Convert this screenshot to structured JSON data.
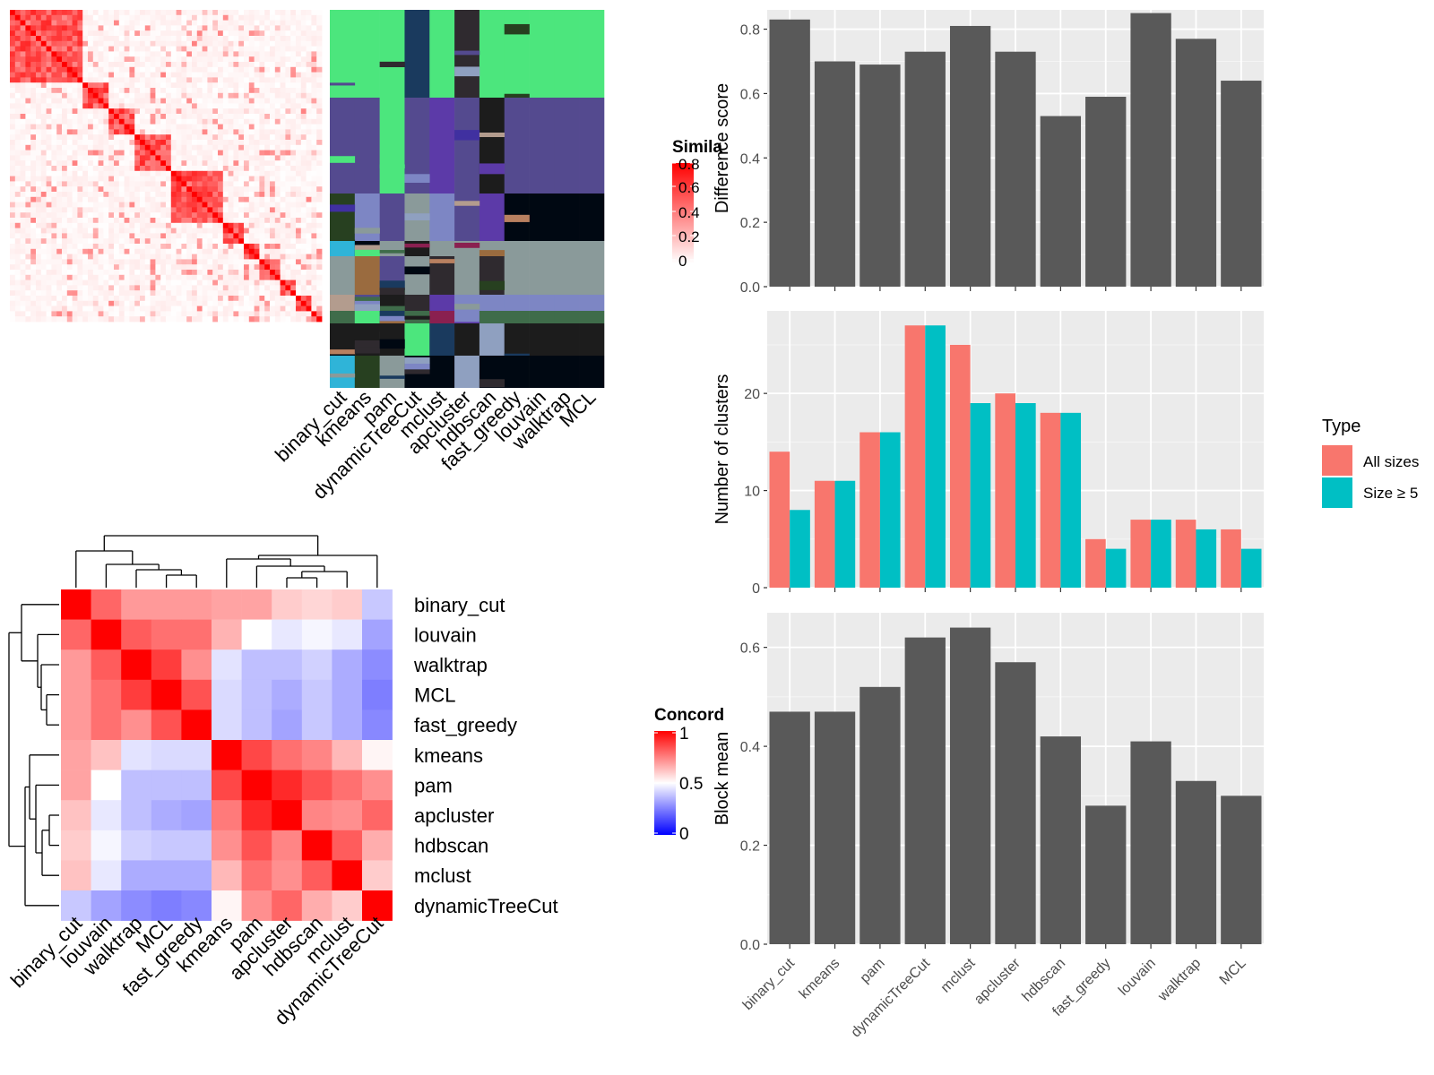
{
  "colors": {
    "panel_bg": "#ebebeb",
    "grid": "#ffffff",
    "bar": "#595959",
    "all_sizes": "#f8766d",
    "size5": "#00bfc4",
    "sim_high": "#ff0000",
    "sim_low": "#ffffff",
    "conc_high": "#ff0000",
    "conc_mid": "#ffffff",
    "conc_low": "#0000ff",
    "cluster_palette": [
      "#4ce67d",
      "#544a8f",
      "#000812",
      "#8a9a9a",
      "#7d86c4",
      "#3f6c4a",
      "#8a2050",
      "#2f2a2f",
      "#1c1c1c",
      "#b39c8e",
      "#2fb4d8",
      "#1a3a5e",
      "#5c3aa8",
      "#9a6b3f",
      "#8fa0c0",
      "#274020",
      "#4030a0",
      "#b88060"
    ]
  },
  "similarity_heatmap": {
    "legend_title": "Simila",
    "legend_ticks": [
      "0.8",
      "0.6",
      "0.4",
      "0.2",
      "0"
    ],
    "method_labels": [
      "binary_cut",
      "kmeans",
      "pam",
      "dynamicTreeCut",
      "mclust",
      "apcluster",
      "hdbscan",
      "fast_greedy",
      "louvain",
      "walktrap",
      "MCL"
    ]
  },
  "concordance_heatmap": {
    "legend_title": "Concord",
    "legend_ticks": [
      "1",
      "0.5",
      "0"
    ],
    "row_labels": [
      "binary_cut",
      "louvain",
      "walktrap",
      "MCL",
      "fast_greedy",
      "kmeans",
      "pam",
      "apcluster",
      "hdbscan",
      "mclust",
      "dynamicTreeCut"
    ],
    "col_labels": [
      "binary_cut",
      "louvain",
      "walktrap",
      "MCL",
      "fast_greedy",
      "kmeans",
      "pam",
      "apcluster",
      "hdbscan",
      "mclust",
      "dynamicTreeCut"
    ],
    "matrix": [
      [
        1.0,
        0.8,
        0.7,
        0.7,
        0.7,
        0.68,
        0.68,
        0.6,
        0.58,
        0.6,
        0.38
      ],
      [
        0.8,
        1.0,
        0.82,
        0.78,
        0.78,
        0.65,
        0.5,
        0.45,
        0.48,
        0.45,
        0.3
      ],
      [
        0.7,
        0.82,
        1.0,
        0.88,
        0.72,
        0.44,
        0.36,
        0.36,
        0.4,
        0.32,
        0.25
      ],
      [
        0.7,
        0.78,
        0.88,
        1.0,
        0.84,
        0.42,
        0.36,
        0.32,
        0.38,
        0.32,
        0.22
      ],
      [
        0.7,
        0.78,
        0.72,
        0.84,
        1.0,
        0.42,
        0.36,
        0.3,
        0.38,
        0.32,
        0.24
      ],
      [
        0.68,
        0.62,
        0.44,
        0.42,
        0.42,
        1.0,
        0.86,
        0.78,
        0.74,
        0.64,
        0.52
      ],
      [
        0.68,
        0.5,
        0.36,
        0.36,
        0.36,
        0.86,
        1.0,
        0.92,
        0.84,
        0.78,
        0.72
      ],
      [
        0.62,
        0.45,
        0.36,
        0.32,
        0.3,
        0.76,
        0.92,
        1.0,
        0.74,
        0.72,
        0.8
      ],
      [
        0.6,
        0.48,
        0.4,
        0.38,
        0.38,
        0.72,
        0.84,
        0.74,
        1.0,
        0.82,
        0.66
      ],
      [
        0.62,
        0.45,
        0.32,
        0.32,
        0.32,
        0.64,
        0.78,
        0.72,
        0.82,
        1.0,
        0.6
      ],
      [
        0.38,
        0.3,
        0.25,
        0.22,
        0.24,
        0.52,
        0.72,
        0.8,
        0.66,
        0.6,
        1.0
      ]
    ]
  },
  "chart_data": [
    {
      "type": "bar",
      "title": "",
      "xlabel": "",
      "ylabel": "Difference score",
      "categories": [
        "binary_cut",
        "kmeans",
        "pam",
        "dynamicTreeCut",
        "mclust",
        "apcluster",
        "hdbscan",
        "fast_greedy",
        "louvain",
        "walktrap",
        "MCL"
      ],
      "values": [
        0.83,
        0.7,
        0.69,
        0.73,
        0.81,
        0.73,
        0.53,
        0.59,
        0.85,
        0.77,
        0.64
      ],
      "ylim": [
        0,
        0.86
      ],
      "yticks": [
        "0.0",
        "0.2",
        "0.4",
        "0.6",
        "0.8"
      ],
      "grid": true
    },
    {
      "type": "bar",
      "title": "",
      "xlabel": "",
      "ylabel": "Number of clusters",
      "categories": [
        "binary_cut",
        "kmeans",
        "pam",
        "dynamicTreeCut",
        "mclust",
        "apcluster",
        "hdbscan",
        "fast_greedy",
        "louvain",
        "walktrap",
        "MCL"
      ],
      "series": [
        {
          "name": "All sizes",
          "values": [
            14,
            11,
            16,
            27,
            25,
            20,
            18,
            5,
            7,
            7,
            6
          ]
        },
        {
          "name": "Size ≥ 5",
          "values": [
            8,
            11,
            16,
            27,
            19,
            19,
            18,
            4,
            7,
            6,
            4
          ]
        }
      ],
      "legend_title": "Type",
      "legend_position": "right",
      "ylim": [
        0,
        28.5
      ],
      "yticks": [
        "0",
        "10",
        "20"
      ],
      "grid": true
    },
    {
      "type": "bar",
      "title": "",
      "xlabel": "",
      "ylabel": "Block mean",
      "categories": [
        "binary_cut",
        "kmeans",
        "pam",
        "dynamicTreeCut",
        "mclust",
        "apcluster",
        "hdbscan",
        "fast_greedy",
        "louvain",
        "walktrap",
        "MCL"
      ],
      "values": [
        0.47,
        0.47,
        0.52,
        0.62,
        0.64,
        0.57,
        0.42,
        0.28,
        0.41,
        0.33,
        0.3
      ],
      "ylim": [
        0,
        0.67
      ],
      "yticks": [
        "0.0",
        "0.2",
        "0.4",
        "0.6"
      ],
      "grid": true
    }
  ]
}
